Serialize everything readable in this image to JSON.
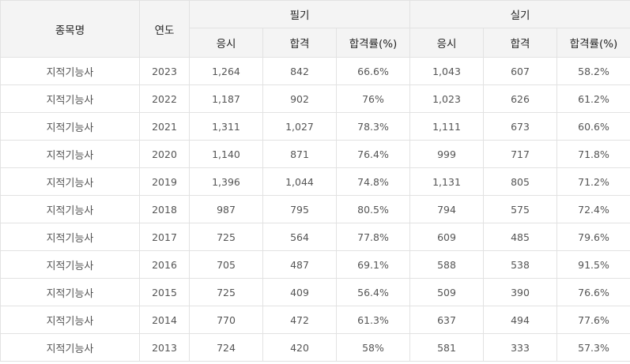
{
  "header": {
    "name": "종목명",
    "year": "연도",
    "written": "필기",
    "practical": "실기",
    "applicants": "응시",
    "passed": "합격",
    "rate": "합격률(%)"
  },
  "rows": [
    {
      "name": "지적기능사",
      "year": "2023",
      "w_app": "1,264",
      "w_pass": "842",
      "w_rate": "66.6%",
      "p_app": "1,043",
      "p_pass": "607",
      "p_rate": "58.2%"
    },
    {
      "name": "지적기능사",
      "year": "2022",
      "w_app": "1,187",
      "w_pass": "902",
      "w_rate": "76%",
      "p_app": "1,023",
      "p_pass": "626",
      "p_rate": "61.2%"
    },
    {
      "name": "지적기능사",
      "year": "2021",
      "w_app": "1,311",
      "w_pass": "1,027",
      "w_rate": "78.3%",
      "p_app": "1,111",
      "p_pass": "673",
      "p_rate": "60.6%"
    },
    {
      "name": "지적기능사",
      "year": "2020",
      "w_app": "1,140",
      "w_pass": "871",
      "w_rate": "76.4%",
      "p_app": "999",
      "p_pass": "717",
      "p_rate": "71.8%"
    },
    {
      "name": "지적기능사",
      "year": "2019",
      "w_app": "1,396",
      "w_pass": "1,044",
      "w_rate": "74.8%",
      "p_app": "1,131",
      "p_pass": "805",
      "p_rate": "71.2%"
    },
    {
      "name": "지적기능사",
      "year": "2018",
      "w_app": "987",
      "w_pass": "795",
      "w_rate": "80.5%",
      "p_app": "794",
      "p_pass": "575",
      "p_rate": "72.4%"
    },
    {
      "name": "지적기능사",
      "year": "2017",
      "w_app": "725",
      "w_pass": "564",
      "w_rate": "77.8%",
      "p_app": "609",
      "p_pass": "485",
      "p_rate": "79.6%"
    },
    {
      "name": "지적기능사",
      "year": "2016",
      "w_app": "705",
      "w_pass": "487",
      "w_rate": "69.1%",
      "p_app": "588",
      "p_pass": "538",
      "p_rate": "91.5%"
    },
    {
      "name": "지적기능사",
      "year": "2015",
      "w_app": "725",
      "w_pass": "409",
      "w_rate": "56.4%",
      "p_app": "509",
      "p_pass": "390",
      "p_rate": "76.6%"
    },
    {
      "name": "지적기능사",
      "year": "2014",
      "w_app": "770",
      "w_pass": "472",
      "w_rate": "61.3%",
      "p_app": "637",
      "p_pass": "494",
      "p_rate": "77.6%"
    },
    {
      "name": "지적기능사",
      "year": "2013",
      "w_app": "724",
      "w_pass": "420",
      "w_rate": "58%",
      "p_app": "581",
      "p_pass": "333",
      "p_rate": "57.3%"
    }
  ]
}
